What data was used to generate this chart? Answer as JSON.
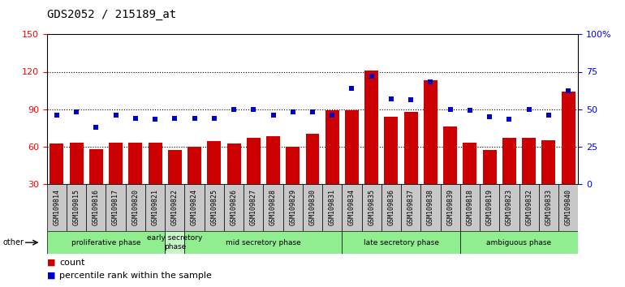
{
  "title": "GDS2052 / 215189_at",
  "categories": [
    "GSM109814",
    "GSM109815",
    "GSM109816",
    "GSM109817",
    "GSM109820",
    "GSM109821",
    "GSM109822",
    "GSM109824",
    "GSM109825",
    "GSM109826",
    "GSM109827",
    "GSM109828",
    "GSM109829",
    "GSM109830",
    "GSM109831",
    "GSM109834",
    "GSM109835",
    "GSM109836",
    "GSM109837",
    "GSM109838",
    "GSM109839",
    "GSM109818",
    "GSM109819",
    "GSM109823",
    "GSM109832",
    "GSM109833",
    "GSM109840"
  ],
  "bar_values": [
    62,
    63,
    58,
    63,
    63,
    63,
    57,
    60,
    64,
    62,
    67,
    68,
    60,
    70,
    89,
    89,
    121,
    84,
    88,
    113,
    76,
    63,
    57,
    67,
    67,
    65,
    104
  ],
  "dot_values": [
    46,
    48,
    38,
    46,
    44,
    43,
    44,
    44,
    44,
    50,
    50,
    46,
    48,
    48,
    46,
    64,
    72,
    57,
    56,
    68,
    50,
    49,
    45,
    43,
    50,
    46,
    62
  ],
  "phases": [
    {
      "label": "proliferative phase",
      "start": 0,
      "end": 6,
      "color": "#90EE90"
    },
    {
      "label": "early secretory\nphase",
      "start": 6,
      "end": 7,
      "color": "#c8f5c8"
    },
    {
      "label": "mid secretory phase",
      "start": 7,
      "end": 15,
      "color": "#90EE90"
    },
    {
      "label": "late secretory phase",
      "start": 15,
      "end": 21,
      "color": "#90EE90"
    },
    {
      "label": "ambiguous phase",
      "start": 21,
      "end": 27,
      "color": "#90EE90"
    }
  ],
  "ylim_left": [
    30,
    150
  ],
  "ylim_right": [
    0,
    100
  ],
  "yticks_left": [
    30,
    60,
    90,
    120,
    150
  ],
  "yticks_right": [
    0,
    25,
    50,
    75,
    100
  ],
  "ytick_labels_right": [
    "0",
    "25",
    "50",
    "75",
    "100%"
  ],
  "bar_color": "#CC0000",
  "dot_color": "#0000CC",
  "tick_bg_color": "#c8c8c8",
  "other_label": "other"
}
